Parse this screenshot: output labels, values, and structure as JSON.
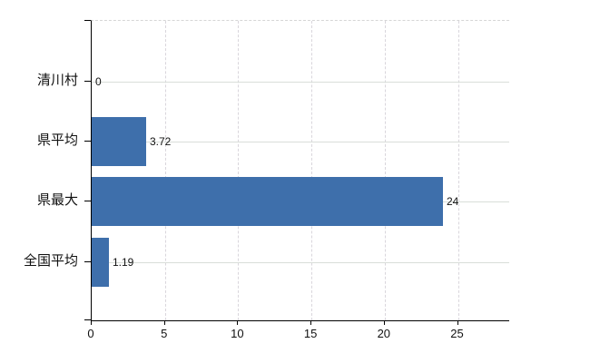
{
  "chart_data": {
    "type": "bar",
    "orientation": "horizontal",
    "title": "",
    "xlabel": "",
    "ylabel": "",
    "categories": [
      "清川村",
      "県平均",
      "県最大",
      "全国平均"
    ],
    "values": [
      0,
      3.72,
      24,
      1.19
    ],
    "value_labels": [
      "0",
      "3.72",
      "24",
      "1.19"
    ],
    "x_tick_values": [
      0,
      5,
      10,
      15,
      20,
      25
    ],
    "x_tick_labels": [
      "0",
      "5",
      "10",
      "15",
      "20",
      "25"
    ],
    "xlim": [
      0,
      28.5
    ],
    "grid": true,
    "grid_vertical_style": "dashed",
    "grid_horizontal_style": "solid",
    "legend": false,
    "colors": {
      "bar": "#3e6fab",
      "axis": "#000000",
      "gridline_horizontal": "#d9ded9",
      "gridline_vertical": "#d9d6dc",
      "text": "#111111",
      "background": "#ffffff"
    }
  }
}
